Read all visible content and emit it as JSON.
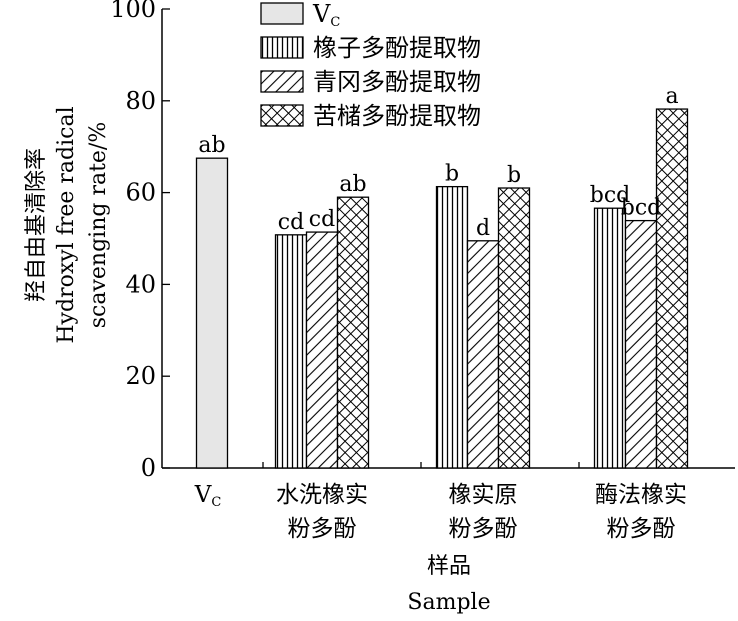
{
  "chart_data": {
    "type": "bar",
    "categories": [
      {
        "lines": [
          "V",
          ""
        ],
        "sub": "C"
      },
      {
        "lines": [
          "水洗橡实",
          "粉多酚"
        ]
      },
      {
        "lines": [
          "橡实原",
          "粉多酚"
        ]
      },
      {
        "lines": [
          "酶法橡实",
          "粉多酚"
        ]
      }
    ],
    "series": [
      {
        "name": "V",
        "name_sub": "C",
        "pattern": "solid",
        "fill": "#e6e6e6",
        "values": [
          67.5,
          null,
          null,
          null
        ],
        "labels": [
          "ab",
          null,
          null,
          null
        ]
      },
      {
        "name": "橡子多酚提取物",
        "pattern": "vertical",
        "values": [
          null,
          50.8,
          61.3,
          56.6
        ],
        "labels": [
          null,
          "cd",
          "b",
          "bcd"
        ]
      },
      {
        "name": "青冈多酚提取物",
        "pattern": "diagonal",
        "values": [
          null,
          51.4,
          49.5,
          53.9
        ],
        "labels": [
          null,
          "cd",
          "d",
          "bcd"
        ]
      },
      {
        "name": "苦槠多酚提取物",
        "pattern": "crosshatch",
        "values": [
          null,
          59.0,
          61.0,
          78.2
        ],
        "labels": [
          null,
          "ab",
          "b",
          "a"
        ]
      }
    ],
    "ylabel": [
      "羟自由基清除率",
      "Hydroxyl free radical",
      "scavenging rate/%"
    ],
    "xlabel": [
      "样品",
      "Sample"
    ],
    "ylim": [
      0,
      100
    ],
    "yticks": [
      0,
      20,
      40,
      60,
      80,
      100
    ],
    "legend_position": "top-left",
    "grid": false
  }
}
